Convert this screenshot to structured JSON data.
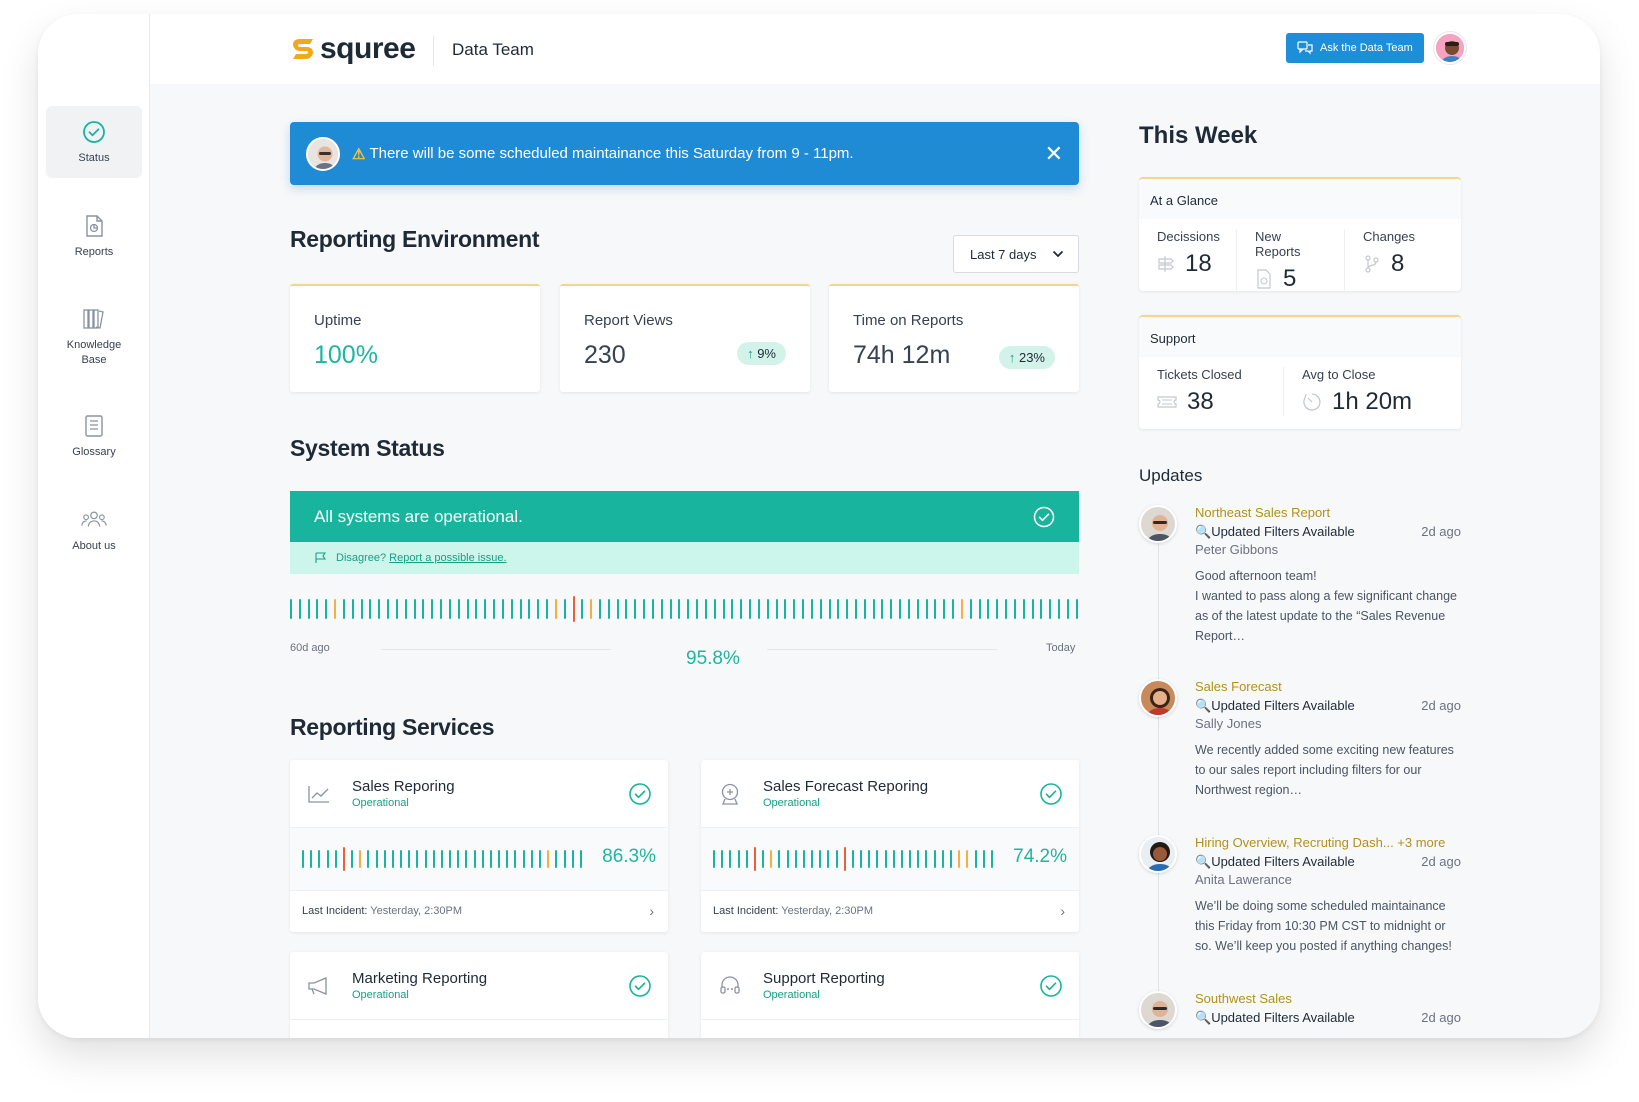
{
  "brand": {
    "name": "squree",
    "team": "Data Team"
  },
  "header": {
    "ask_label": "Ask the Data Team"
  },
  "sidebar": {
    "items": [
      {
        "label": "Status",
        "icon": "check-circle-icon"
      },
      {
        "label": "Reports",
        "icon": "report-file-icon"
      },
      {
        "label": "Knowledge\nBase",
        "icon": "books-icon"
      },
      {
        "label": "Glossary",
        "icon": "book-icon"
      },
      {
        "label": "About us",
        "icon": "people-icon"
      }
    ]
  },
  "banner": {
    "message": "There will be some scheduled maintainance this Saturday from 9 - 11pm."
  },
  "reporting_env": {
    "title": "Reporting Environment",
    "range": "Last 7 days",
    "stats": [
      {
        "label": "Uptime",
        "value": "100%"
      },
      {
        "label": "Report Views",
        "value": "230",
        "change": "9%"
      },
      {
        "label": "Time on Reports",
        "value": "74h 12m",
        "change": "23%"
      }
    ]
  },
  "system_status": {
    "title": "System Status",
    "message": "All systems are operational.",
    "disagree": "Disagree?",
    "report_link": "Report a possible issue.",
    "start_label": "60d ago",
    "end_label": "Today",
    "uptime": "95.8%"
  },
  "services": {
    "title": "Reporting Services",
    "items": [
      {
        "name": "Sales Reporing",
        "status": "Operational",
        "uptime": "86.3%",
        "incident_label": "Last Incident:",
        "incident": "Yesterday, 2:30PM"
      },
      {
        "name": "Sales Forecast Reporing",
        "status": "Operational",
        "uptime": "74.2%",
        "incident_label": "Last Incident:",
        "incident": "Yesterday, 2:30PM"
      },
      {
        "name": "Marketing Reporting",
        "status": "Operational"
      },
      {
        "name": "Support Reporting",
        "status": "Operational"
      }
    ]
  },
  "this_week": {
    "title": "This Week",
    "glance": {
      "title": "At a Glance",
      "metrics": [
        {
          "label": "Decissions",
          "value": "18"
        },
        {
          "label": "New Reports",
          "value": "5"
        },
        {
          "label": "Changes",
          "value": "8"
        }
      ]
    },
    "support": {
      "title": "Support",
      "metrics": [
        {
          "label": "Tickets Closed",
          "value": "38"
        },
        {
          "label": "Avg to Close",
          "value": "1h 20m"
        }
      ]
    }
  },
  "updates": {
    "title": "Updates",
    "items": [
      {
        "report": "Northeast Sales Report",
        "subject": "Updated Filters Available",
        "ago": "2d ago",
        "author": "Peter Gibbons",
        "text": "Good afternoon team!\nI wanted to pass along a few significant change as of the latest update to the “Sales Revenue Report…"
      },
      {
        "report": "Sales Forecast",
        "subject": "Updated Filters Available",
        "ago": "2d ago",
        "author": "Sally Jones",
        "text": "We recently added some exciting new features to our sales report including filters for our Northwest region…"
      },
      {
        "report": "Hiring Overview, Recruting Dash... +3 more",
        "subject": "Updated Filters Available",
        "ago": "2d ago",
        "author": "Anita Lawerance",
        "text": "We’ll be doing some scheduled maintainance this Friday from 10:30 PM CST to midnight or so. We’ll keep you posted if anything changes!"
      },
      {
        "report": "Southwest Sales",
        "subject": "Updated Filters Available",
        "ago": "2d ago"
      }
    ]
  },
  "colors": {
    "teal": "#18b49e",
    "blue": "#1f8bd5",
    "gold": "#b3901b",
    "orange": "#f6b042",
    "red": "#e8603c"
  }
}
